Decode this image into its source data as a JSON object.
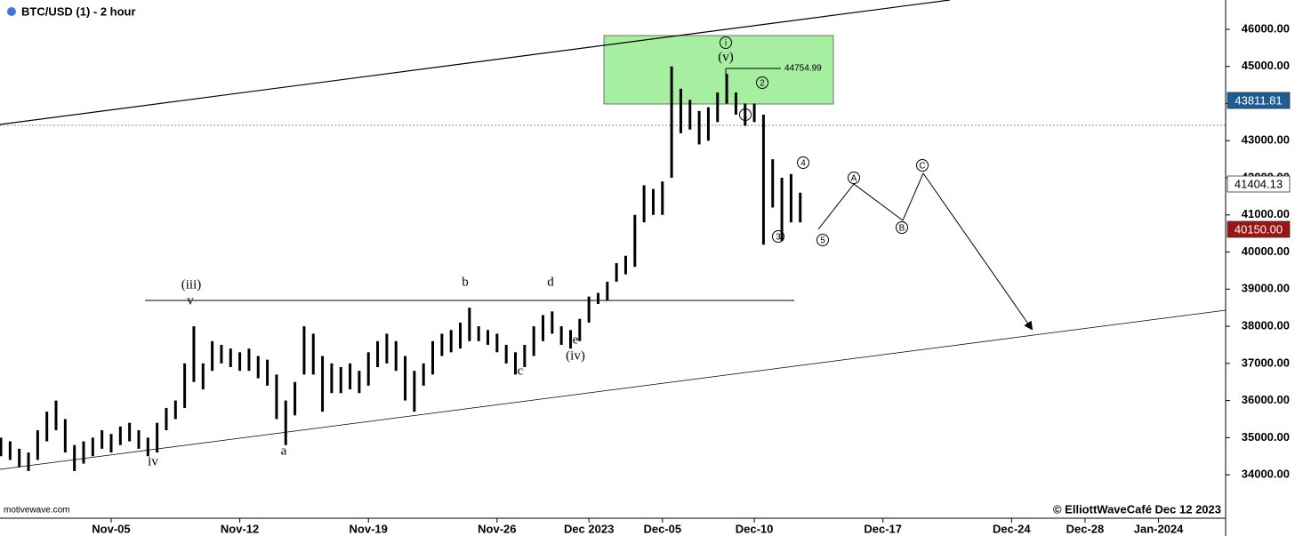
{
  "chart_data": {
    "type": "rangebar",
    "title": "BTC/USD (1) - 2 hour",
    "source": "motivewave.com",
    "credit": "© ElliottWaveCafé  Dec 12 2023",
    "color": "#000000",
    "xlim": [
      -1.05,
      65.65
    ],
    "ylim": [
      33260,
      46790
    ],
    "xticks": [
      {
        "value": 5,
        "label": "Nov-05"
      },
      {
        "value": 12,
        "label": "Nov-12"
      },
      {
        "value": 19,
        "label": "Nov-19"
      },
      {
        "value": 26,
        "label": "Nov-26"
      },
      {
        "value": 31,
        "label": "Dec 2023"
      },
      {
        "value": 35,
        "label": "Dec-05"
      },
      {
        "value": 40,
        "label": "Dec-10"
      },
      {
        "value": 47,
        "label": "Dec-17"
      },
      {
        "value": 54,
        "label": "Dec-24"
      },
      {
        "value": 58,
        "label": "Dec-28"
      },
      {
        "value": 62,
        "label": "Jan-2024"
      }
    ],
    "yticks": [
      {
        "value": 34000,
        "label": "34000.00"
      },
      {
        "value": 35000,
        "label": "35000.00"
      },
      {
        "value": 36000,
        "label": "36000.00"
      },
      {
        "value": 37000,
        "label": "37000.00"
      },
      {
        "value": 38000,
        "label": "38000.00"
      },
      {
        "value": 39000,
        "label": "39000.00"
      },
      {
        "value": 40000,
        "label": "40000.00"
      },
      {
        "value": 41000,
        "label": "41000.00"
      },
      {
        "value": 42000,
        "label": "42000.00"
      },
      {
        "value": 43000,
        "label": "43000.00"
      },
      {
        "value": 44000,
        "label": "44000.00"
      },
      {
        "value": 45000,
        "label": "45000.00"
      },
      {
        "value": 46000,
        "label": "46000.00"
      }
    ],
    "price_labels": [
      "43811.81",
      "41404.13",
      "40150.00"
    ],
    "level_label": "44754.99",
    "wave_labels": [
      "(iii)",
      "v",
      "iv",
      "a",
      "b",
      "c",
      "d",
      "e",
      "(iv)",
      "(v)",
      "i",
      "1",
      "2",
      "3",
      "4",
      "5",
      "A",
      "B",
      "C"
    ],
    "x": [
      -1,
      -0.5,
      0,
      0.5,
      1,
      1.5,
      2,
      2.5,
      3,
      3.5,
      4,
      4.5,
      5,
      5.5,
      6,
      6.5,
      7,
      7.5,
      8,
      8.5,
      9,
      9.5,
      10,
      10.5,
      11,
      11.5,
      12,
      12.5,
      13,
      13.5,
      14,
      14.5,
      15,
      15.5,
      16,
      16.5,
      17,
      17.5,
      18,
      18.5,
      19,
      19.5,
      20,
      20.5,
      21,
      21.5,
      22,
      22.5,
      23,
      23.5,
      24,
      24.5,
      25,
      25.5,
      26,
      26.5,
      27,
      27.5,
      28,
      28.5,
      29,
      29.5,
      30,
      30.5,
      31,
      31.5,
      32,
      32.5,
      33,
      33.5,
      34,
      34.5,
      35,
      35.5,
      36,
      36.5,
      37,
      37.5,
      38,
      38.5,
      39,
      39.5,
      40,
      40.5,
      41,
      41.5,
      42,
      42.5
    ],
    "high": [
      35000,
      34900,
      34700,
      34600,
      35200,
      35700,
      36000,
      35500,
      34800,
      34900,
      35000,
      35200,
      35100,
      35300,
      35400,
      35200,
      35000,
      35400,
      35800,
      36000,
      37000,
      38000,
      37000,
      37600,
      37500,
      37400,
      37300,
      37400,
      37200,
      37100,
      36700,
      36000,
      36500,
      38000,
      37800,
      37200,
      37000,
      36900,
      37000,
      36800,
      37300,
      37600,
      37800,
      37600,
      37200,
      36800,
      37000,
      37600,
      37800,
      37900,
      38100,
      38500,
      38000,
      37900,
      37800,
      37500,
      37300,
      37500,
      38000,
      38300,
      38400,
      38000,
      37900,
      38200,
      38800,
      38900,
      39200,
      39700,
      39900,
      41000,
      41800,
      41700,
      41900,
      45000,
      44400,
      44100,
      43800,
      43900,
      44300,
      44800,
      44300,
      44000,
      44000,
      43700,
      42500,
      42000,
      42100,
      41600
    ],
    "low": [
      34500,
      34400,
      34200,
      34100,
      34400,
      34900,
      35200,
      34600,
      34100,
      34300,
      34500,
      34700,
      34600,
      34800,
      34900,
      34700,
      34500,
      34600,
      35200,
      35500,
      35800,
      36500,
      36300,
      36800,
      37000,
      36900,
      36800,
      36800,
      36600,
      36400,
      35500,
      34800,
      35600,
      36700,
      36700,
      35700,
      36200,
      36200,
      36300,
      36200,
      36400,
      36900,
      37000,
      36800,
      36000,
      35700,
      36400,
      36700,
      37200,
      37300,
      37400,
      37600,
      37600,
      37500,
      37300,
      37000,
      36700,
      36900,
      37200,
      37600,
      37800,
      37500,
      37400,
      37600,
      38100,
      38600,
      38700,
      39200,
      39400,
      39600,
      40800,
      41000,
      41000,
      42000,
      43200,
      43300,
      42900,
      43000,
      43500,
      44000,
      43700,
      43400,
      43500,
      40200,
      41200,
      40300,
      40800,
      40800
    ]
  }
}
